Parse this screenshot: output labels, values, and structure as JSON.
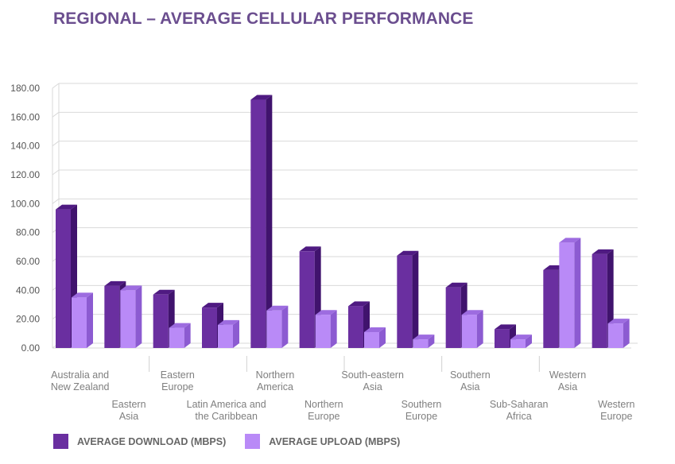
{
  "title": "REGIONAL – AVERAGE CELLULAR PERFORMANCE",
  "colors": {
    "download": "#6a2fa0",
    "download_top": "#4f1a82",
    "download_side": "#40136d",
    "upload": "#b98af7",
    "upload_top": "#9d6ce0",
    "upload_side": "#8c5bd1"
  },
  "legend": [
    {
      "label": "AVERAGE DOWNLOAD (MBPS)",
      "color": "#6a2fa0"
    },
    {
      "label": "AVERAGE UPLOAD (MBPS)",
      "color": "#b98af7"
    }
  ],
  "chart_data": {
    "type": "bar",
    "title": "REGIONAL – AVERAGE CELLULAR PERFORMANCE",
    "categories": [
      "Australia and New Zealand",
      "Eastern Asia",
      "Eastern Europe",
      "Latin America and the Caribbean",
      "Northern America",
      "Northern Europe",
      "South-eastern Asia",
      "Southern Europe",
      "Southern Asia",
      "Sub-Saharan Africa",
      "Western Asia",
      "Western Europe"
    ],
    "category_lines": [
      [
        "Australia and",
        "New Zealand"
      ],
      [
        "Eastern",
        "Asia"
      ],
      [
        "Eastern",
        "Europe"
      ],
      [
        "Latin America and",
        "the Caribbean"
      ],
      [
        "Northern",
        "America"
      ],
      [
        "Northern",
        "Europe"
      ],
      [
        "South-eastern",
        "Asia"
      ],
      [
        "Southern",
        "Europe"
      ],
      [
        "Southern",
        "Asia"
      ],
      [
        "Sub-Saharan",
        "Africa"
      ],
      [
        "Western",
        "Asia"
      ],
      [
        "Western",
        "Europe"
      ]
    ],
    "series": [
      {
        "name": "AVERAGE DOWNLOAD (MBPS)",
        "values": [
          96,
          43,
          37,
          28,
          172,
          67,
          29,
          64,
          42,
          13,
          54,
          65
        ]
      },
      {
        "name": "AVERAGE UPLOAD (MBPS)",
        "values": [
          35,
          40,
          14,
          16,
          26,
          23,
          11,
          6,
          23,
          6,
          73,
          17
        ]
      }
    ],
    "ylim": [
      0,
      180
    ],
    "yticks": [
      "0.00",
      "20.00",
      "40.00",
      "60.00",
      "80.00",
      "100.00",
      "120.00",
      "140.00",
      "160.00",
      "180.00"
    ],
    "grid": true,
    "legend_position": "bottom-left",
    "xlabel": "",
    "ylabel": ""
  }
}
